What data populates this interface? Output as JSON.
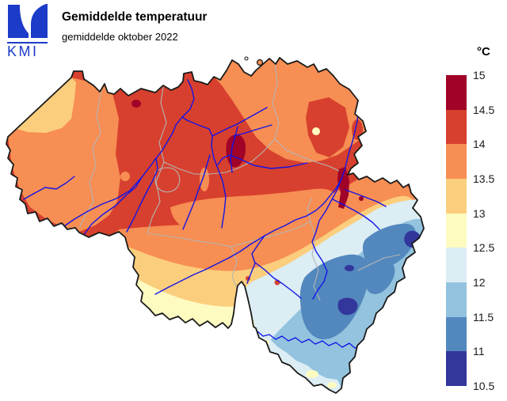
{
  "header": {
    "logo_text": "KMI",
    "logo_color": "#1B3BC8",
    "title": "Gemiddelde temperatuur",
    "subtitle": "gemiddelde oktober 2022"
  },
  "legend": {
    "unit": "°C",
    "ticks": [
      "15",
      "14.5",
      "14",
      "13.5",
      "13",
      "12.5",
      "12",
      "11.5",
      "11",
      "10.5"
    ],
    "colors": [
      "#A00228",
      "#D7402E",
      "#F78E53",
      "#FBCE7D",
      "#FEFBC1",
      "#DCEDF4",
      "#93C3DE",
      "#5288BE",
      "#33369B"
    ]
  },
  "map": {
    "region": "Belgium",
    "river_color": "#1414E6",
    "province_border_color": "#B5B5B5",
    "country_border_color": "#1A1A1A",
    "background_color": "#FFFFFF"
  }
}
